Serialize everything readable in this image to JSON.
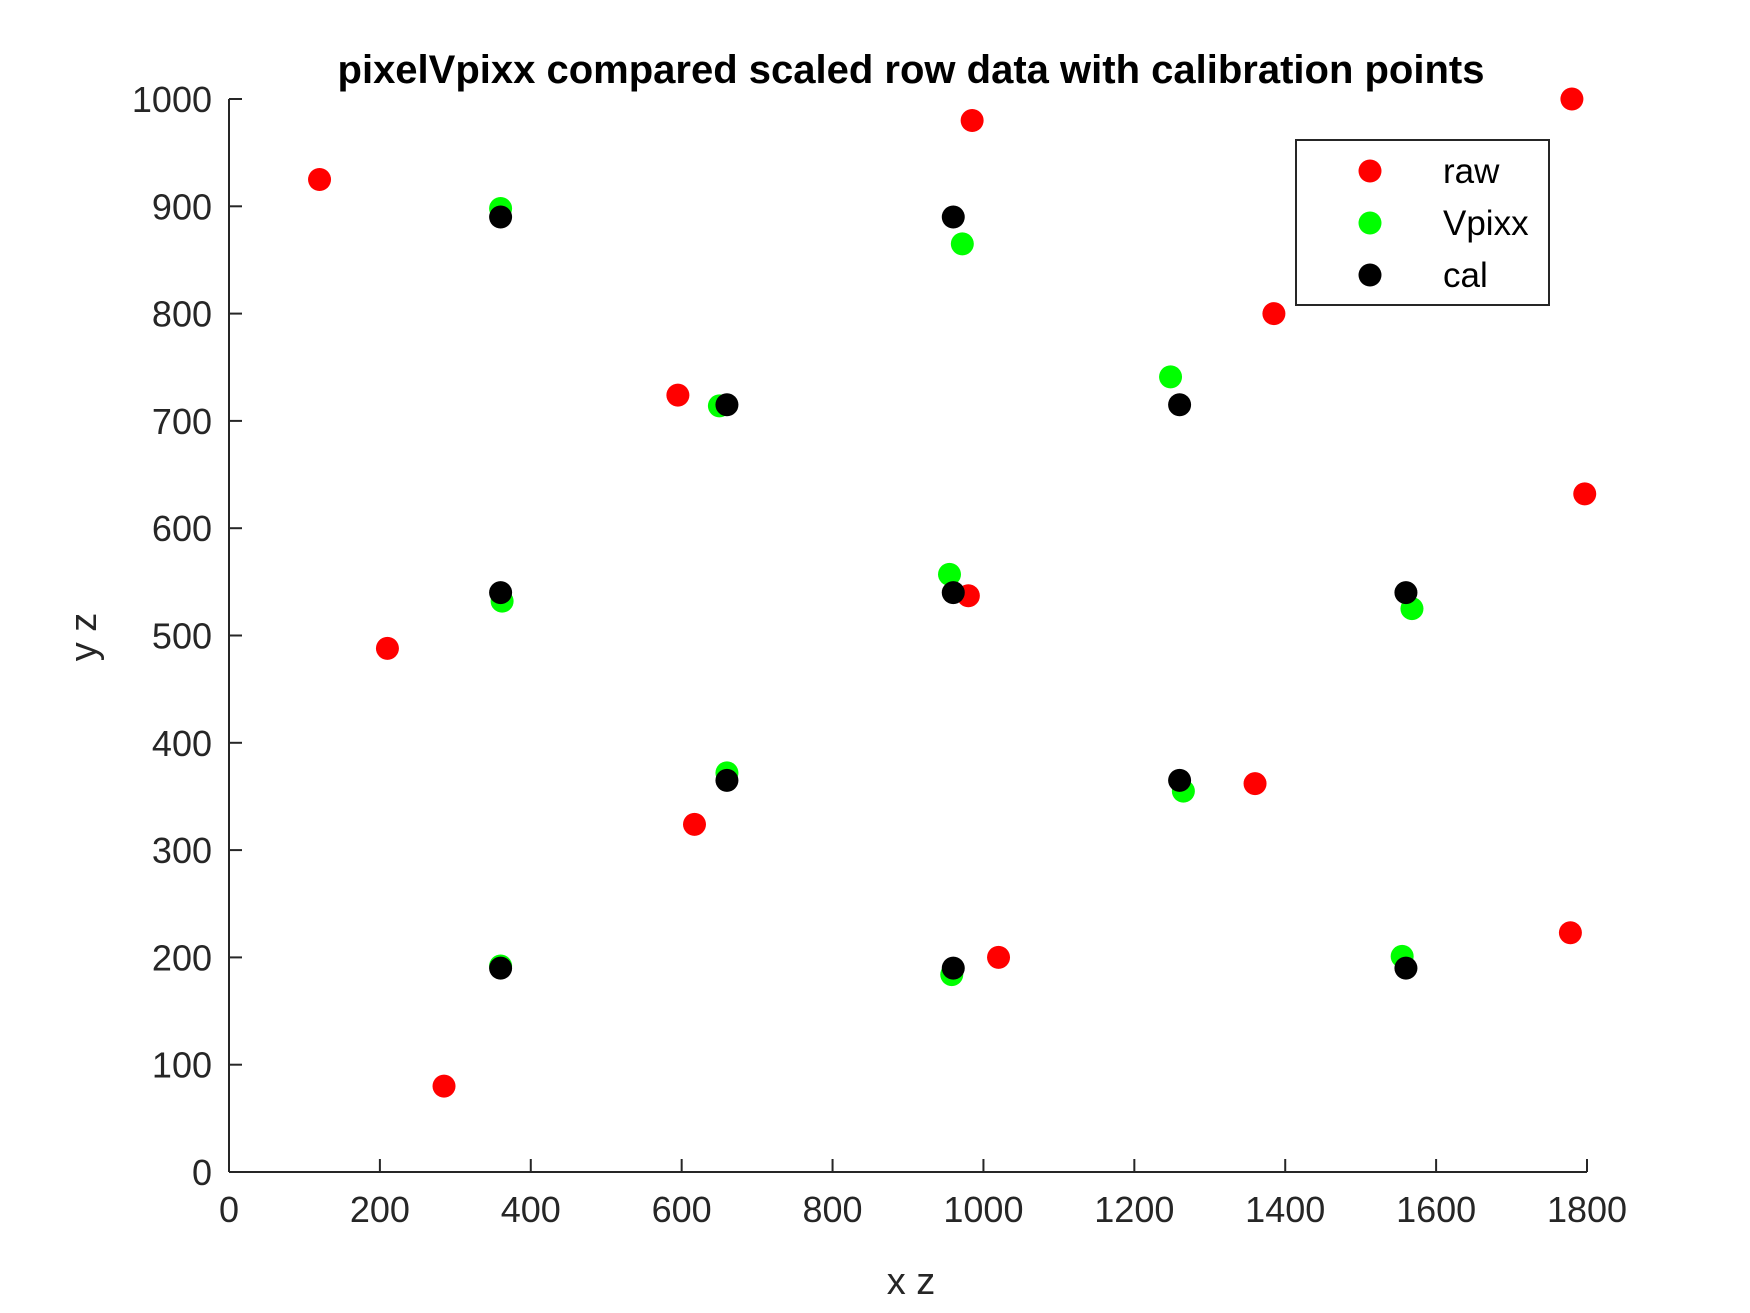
{
  "chart_data": {
    "type": "scatter",
    "title": "pixelVpixx compared scaled row data with calibration points",
    "xlabel": "x z",
    "ylabel": "y z",
    "xlim": [
      0,
      1800
    ],
    "ylim": [
      0,
      1000
    ],
    "xticks": [
      0,
      200,
      400,
      600,
      800,
      1000,
      1200,
      1400,
      1600,
      1800
    ],
    "yticks": [
      0,
      100,
      200,
      300,
      400,
      500,
      600,
      700,
      800,
      900,
      1000
    ],
    "grid": false,
    "box": false,
    "legend_position": "top-right",
    "series": [
      {
        "name": "raw",
        "color": "#ff0000",
        "points": [
          [
            120,
            925
          ],
          [
            210,
            488
          ],
          [
            285,
            80
          ],
          [
            595,
            724
          ],
          [
            617,
            324
          ],
          [
            985,
            980
          ],
          [
            980,
            537
          ],
          [
            1020,
            200
          ],
          [
            1385,
            800
          ],
          [
            1360,
            362
          ],
          [
            1780,
            1000
          ],
          [
            1797,
            632
          ],
          [
            1778,
            223
          ]
        ]
      },
      {
        "name": "Vpixx",
        "color": "#00ff00",
        "points": [
          [
            360,
            898
          ],
          [
            362,
            532
          ],
          [
            360,
            192
          ],
          [
            650,
            714
          ],
          [
            660,
            372
          ],
          [
            972,
            865
          ],
          [
            955,
            557
          ],
          [
            958,
            184
          ],
          [
            1248,
            741
          ],
          [
            1265,
            355
          ],
          [
            1568,
            525
          ],
          [
            1555,
            201
          ]
        ]
      },
      {
        "name": "cal",
        "color": "#000000",
        "points": [
          [
            360,
            890
          ],
          [
            360,
            540
          ],
          [
            360,
            190
          ],
          [
            660,
            715
          ],
          [
            660,
            365
          ],
          [
            960,
            890
          ],
          [
            960,
            540
          ],
          [
            960,
            190
          ],
          [
            1260,
            715
          ],
          [
            1260,
            365
          ],
          [
            1560,
            540
          ],
          [
            1560,
            190
          ]
        ]
      }
    ]
  }
}
